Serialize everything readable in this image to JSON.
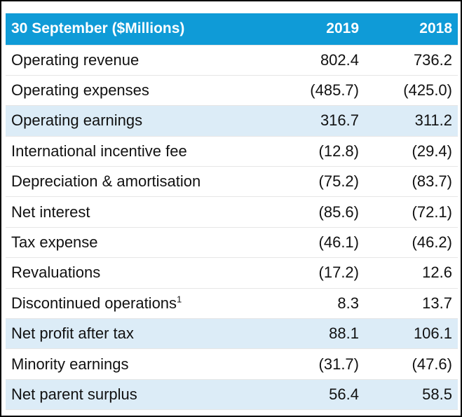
{
  "table": {
    "header": {
      "label": "30 September ($Millions)",
      "year1": "2019",
      "year2": "2018"
    },
    "colors": {
      "header_bg": "#0f9bd7",
      "highlight_bg": "#dcecf7"
    },
    "rows": [
      {
        "label": "Operating revenue",
        "note": "",
        "v2019": "802.4",
        "v2018": "736.2",
        "highlight": false
      },
      {
        "label": "Operating expenses",
        "note": "",
        "v2019": "(485.7)",
        "v2018": "(425.0)",
        "highlight": false
      },
      {
        "label": "Operating earnings",
        "note": "",
        "v2019": "316.7",
        "v2018": "311.2",
        "highlight": true
      },
      {
        "label": "International incentive fee",
        "note": "",
        "v2019": "(12.8)",
        "v2018": "(29.4)",
        "highlight": false
      },
      {
        "label": "Depreciation & amortisation",
        "note": "",
        "v2019": "(75.2)",
        "v2018": "(83.7)",
        "highlight": false
      },
      {
        "label": "Net interest",
        "note": "",
        "v2019": "(85.6)",
        "v2018": "(72.1)",
        "highlight": false
      },
      {
        "label": "Tax expense",
        "note": "",
        "v2019": "(46.1)",
        "v2018": "(46.2)",
        "highlight": false
      },
      {
        "label": "Revaluations",
        "note": "",
        "v2019": "(17.2)",
        "v2018": "12.6",
        "highlight": false
      },
      {
        "label": "Discontinued operations",
        "note": "1",
        "v2019": "8.3",
        "v2018": "13.7",
        "highlight": false
      },
      {
        "label": "Net profit after tax",
        "note": "",
        "v2019": "88.1",
        "v2018": "106.1",
        "highlight": true
      },
      {
        "label": "Minority earnings",
        "note": "",
        "v2019": "(31.7)",
        "v2018": "(47.6)",
        "highlight": false
      },
      {
        "label": "Net parent surplus",
        "note": "",
        "v2019": "56.4",
        "v2018": "58.5",
        "highlight": true
      }
    ]
  }
}
